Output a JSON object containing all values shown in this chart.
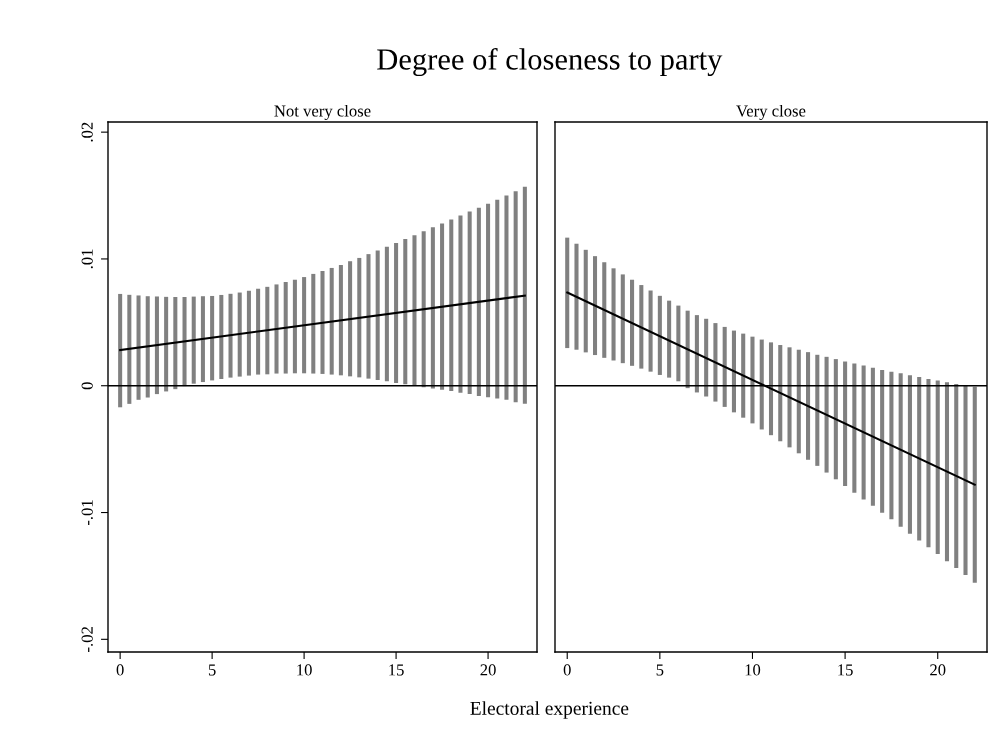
{
  "chart_data": [
    {
      "type": "bar",
      "title": "Degree of closeness to party",
      "subtitle": "Not very close",
      "xlabel": "Electoral experience",
      "xlim": [
        -0.66,
        22.66
      ],
      "xticks": [
        0,
        5,
        10,
        15,
        20
      ],
      "ylim": [
        -0.021,
        0.0208
      ],
      "yticks": [
        {
          "value": -0.02,
          "label": "-.02"
        },
        {
          "value": -0.01,
          "label": "-.01"
        },
        0,
        {
          "value": 0.01,
          "label": ".01"
        },
        {
          "value": 0.02,
          "label": ".02"
        }
      ],
      "grid": false,
      "legend": false,
      "ref_lines": [
        {
          "axis": "y",
          "value": 0,
          "color": "#000000"
        }
      ],
      "series": [
        {
          "color": "#808080",
          "x": [
            0,
            0.5,
            1,
            1.5,
            2,
            2.5,
            3,
            3.5,
            4,
            4.5,
            5,
            5.5,
            6,
            6.5,
            7,
            7.5,
            8,
            8.5,
            9,
            9.5,
            10,
            10.5,
            11,
            11.5,
            12,
            12.5,
            13,
            13.5,
            14,
            14.5,
            15,
            15.5,
            16,
            16.5,
            17,
            17.5,
            18,
            18.5,
            19,
            19.5,
            20,
            20.5,
            21,
            21.5,
            22
          ],
          "base": [
            -0.0017,
            -0.00143,
            -0.00111,
            -0.00093,
            -0.00066,
            -0.00045,
            -0.00027,
            -3e-05,
            0.00016,
            0.00029,
            0.00042,
            0.00053,
            0.00064,
            0.00072,
            0.0008,
            0.00088,
            0.0009,
            0.00096,
            0.00096,
            0.00098,
            0.00098,
            0.00096,
            0.00093,
            0.00088,
            0.00082,
            0.00074,
            0.00066,
            0.00056,
            0.00045,
            0.00035,
            0.00021,
            0.00011,
            0.0,
            -0.00011,
            -0.00021,
            -0.00032,
            -0.00042,
            -0.00056,
            -0.00066,
            -0.0008,
            -0.0009,
            -0.00101,
            -0.00111,
            -0.0013,
            -0.00143
          ],
          "values": [
            0.00894,
            0.0086,
            0.00823,
            0.00799,
            0.0077,
            0.00746,
            0.00727,
            0.00703,
            0.00687,
            0.00677,
            0.00666,
            0.00663,
            0.00661,
            0.00663,
            0.00669,
            0.00677,
            0.0069,
            0.00703,
            0.00722,
            0.00738,
            0.00759,
            0.00786,
            0.00812,
            0.00841,
            0.0087,
            0.00908,
            0.00942,
            0.00982,
            0.01022,
            0.01062,
            0.01104,
            0.01146,
            0.01186,
            0.01229,
            0.01271,
            0.01311,
            0.01354,
            0.01399,
            0.01441,
            0.01484,
            0.01526,
            0.01568,
            0.01611,
            0.01664,
            0.01712
          ]
        },
        {
          "type": "line",
          "color": "#000000",
          "x": [
            0,
            22
          ],
          "values": [
            0.00281,
            0.00711
          ]
        }
      ]
    },
    {
      "type": "bar",
      "subtitle": "Very close",
      "xlim": [
        -0.66,
        22.66
      ],
      "xticks": [
        0,
        5,
        10,
        15,
        20
      ],
      "ylim": [
        -0.021,
        0.0208
      ],
      "tick_labels": "x",
      "grid": false,
      "legend": false,
      "ref_lines": [
        {
          "axis": "y",
          "value": 0,
          "color": "#000000"
        }
      ],
      "series": [
        {
          "color": "#808080",
          "x": [
            0,
            0.5,
            1,
            1.5,
            2,
            2.5,
            3,
            3.5,
            4,
            4.5,
            5,
            5.5,
            6,
            6.5,
            7,
            7.5,
            8,
            8.5,
            9,
            9.5,
            10,
            10.5,
            11,
            11.5,
            12,
            12.5,
            13,
            13.5,
            14,
            14.5,
            15,
            15.5,
            16,
            16.5,
            17,
            17.5,
            18,
            18.5,
            19,
            19.5,
            20,
            20.5,
            21,
            21.5,
            22
          ],
          "base": [
            0.00297,
            0.00284,
            0.00263,
            0.00242,
            0.0022,
            0.00199,
            0.00178,
            0.00157,
            0.00135,
            0.00111,
            0.00085,
            0.00064,
            0.00035,
            -0.00019,
            -0.00053,
            -0.00085,
            -0.00125,
            -0.00167,
            -0.0021,
            -0.00252,
            -0.00297,
            -0.00345,
            -0.0039,
            -0.00438,
            -0.00486,
            -0.00533,
            -0.00584,
            -0.00632,
            -0.00685,
            -0.00738,
            -0.00791,
            -0.00844,
            -0.00897,
            -0.00947,
            -0.01001,
            -0.01054,
            -0.01112,
            -0.01168,
            -0.01221,
            -0.01274,
            -0.01327,
            -0.01385,
            -0.01438,
            -0.01492,
            -0.01553
          ],
          "values": [
            0.00871,
            0.00836,
            0.00809,
            0.0078,
            0.00754,
            0.00727,
            0.007,
            0.00679,
            0.00659,
            0.0064,
            0.00624,
            0.00607,
            0.00597,
            0.00611,
            0.0061,
            0.00613,
            0.00619,
            0.00631,
            0.00645,
            0.00663,
            0.00684,
            0.00709,
            0.00732,
            0.00759,
            0.00789,
            0.00817,
            0.00849,
            0.00876,
            0.00913,
            0.00948,
            0.00982,
            0.01019,
            0.01056,
            0.01088,
            0.01126,
            0.01165,
            0.0121,
            0.0125,
            0.0129,
            0.01327,
            0.01369,
            0.01412,
            0.01451,
            0.01492,
            0.01545
          ]
        },
        {
          "type": "line",
          "color": "#000000",
          "x": [
            0,
            22
          ],
          "values": [
            0.00735,
            -0.0078
          ]
        }
      ]
    }
  ]
}
